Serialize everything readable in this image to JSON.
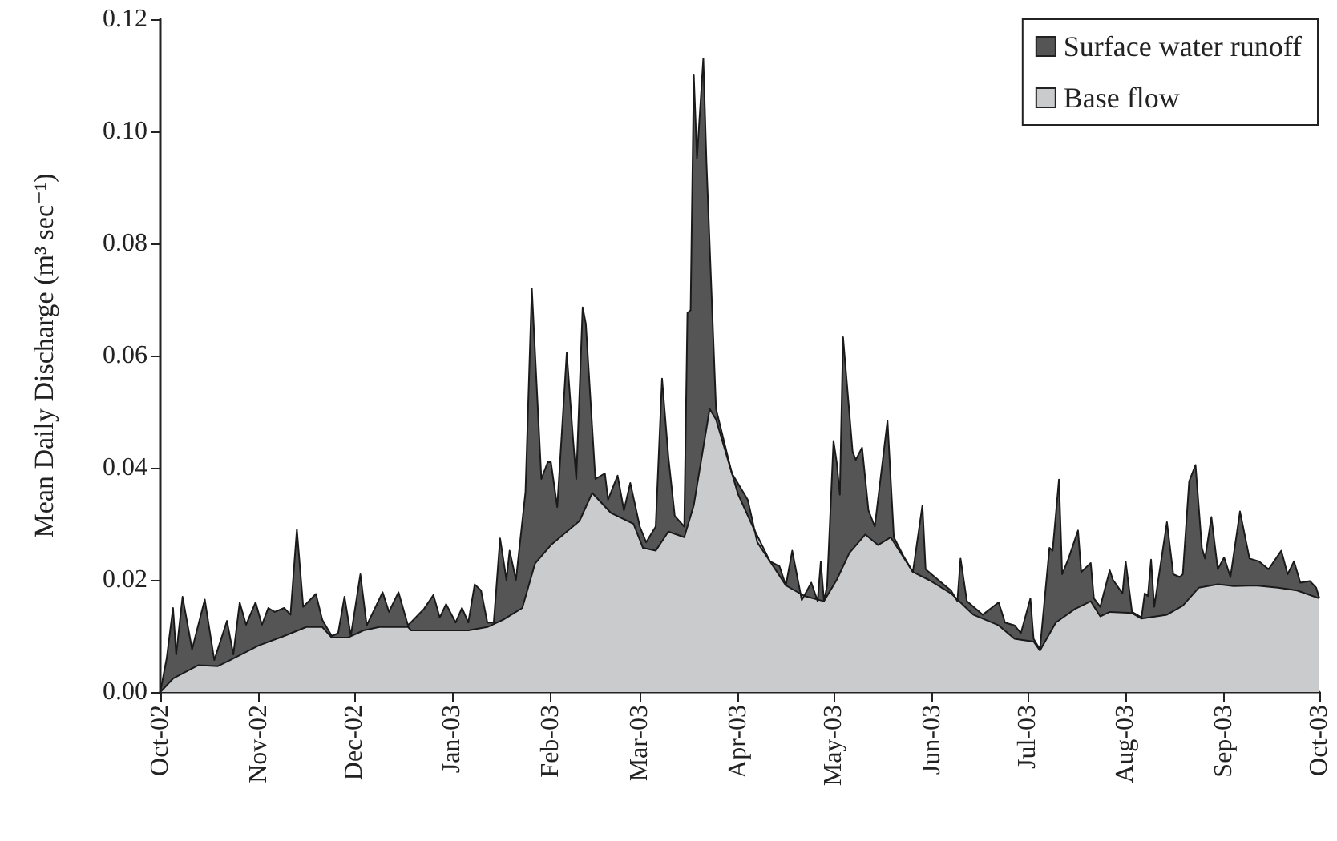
{
  "chart_data": {
    "type": "area",
    "ylabel": "Mean Daily Discharge (m³ sec⁻¹)",
    "legend": "top right",
    "grid": false,
    "xlim": [
      "2002-10-01",
      "2003-10-01"
    ],
    "xticks": [
      {
        "value": "2002-10-01",
        "label": "Oct-02"
      },
      {
        "value": "2002-11-01",
        "label": "Nov-02"
      },
      {
        "value": "2002-12-01",
        "label": "Dec-02"
      },
      {
        "value": "2003-01-01",
        "label": "Jan-03"
      },
      {
        "value": "2003-02-01",
        "label": "Feb-03"
      },
      {
        "value": "2003-03-01",
        "label": "Mar-03"
      },
      {
        "value": "2003-04-01",
        "label": "Apr-03"
      },
      {
        "value": "2003-05-01",
        "label": "May-03"
      },
      {
        "value": "2003-06-01",
        "label": "Jun-03"
      },
      {
        "value": "2003-07-01",
        "label": "Jul-03"
      },
      {
        "value": "2003-08-01",
        "label": "Aug-03"
      },
      {
        "value": "2003-09-01",
        "label": "Sep-03"
      },
      {
        "value": "2003-10-01",
        "label": "Oct-03"
      }
    ],
    "ylim": [
      0,
      0.12
    ],
    "yticks": [
      {
        "value": 0,
        "label": "0.00"
      },
      {
        "value": 0.02,
        "label": "0.02"
      },
      {
        "value": 0.04,
        "label": "0.04"
      },
      {
        "value": 0.06,
        "label": "0.06"
      },
      {
        "value": 0.08,
        "label": "0.08"
      },
      {
        "value": 0.1,
        "label": "0.10"
      },
      {
        "value": 0.12,
        "label": "0.12"
      }
    ],
    "series": [
      {
        "name": "Surface water runoff",
        "color": "#555555",
        "x": [
          "2002-10-01",
          "2002-10-03",
          "2002-10-05",
          "2002-10-06",
          "2002-10-08",
          "2002-10-11",
          "2002-10-15",
          "2002-10-18",
          "2002-10-22",
          "2002-10-24",
          "2002-10-26",
          "2002-10-28",
          "2002-10-31",
          "2002-11-02",
          "2002-11-04",
          "2002-11-06",
          "2002-11-09",
          "2002-11-11",
          "2002-11-13",
          "2002-11-15",
          "2002-11-19",
          "2002-11-21",
          "2002-11-24",
          "2002-11-26",
          "2002-11-28",
          "2002-11-30",
          "2002-12-03",
          "2002-12-05",
          "2002-12-10",
          "2002-12-12",
          "2002-12-15",
          "2002-12-18",
          "2002-12-23",
          "2002-12-26",
          "2002-12-28",
          "2002-12-30",
          "2003-01-02",
          "2003-01-04",
          "2003-01-06",
          "2003-01-08",
          "2003-01-10",
          "2003-01-12",
          "2003-01-14",
          "2003-01-16",
          "2003-01-18",
          "2003-01-19",
          "2003-01-21",
          "2003-01-24",
          "2003-01-26",
          "2003-01-29",
          "2003-01-31",
          "2003-02-01",
          "2003-02-03",
          "2003-02-06",
          "2003-02-08",
          "2003-02-09",
          "2003-02-11",
          "2003-02-12",
          "2003-02-15",
          "2003-02-18",
          "2003-02-19",
          "2003-02-22",
          "2003-02-24",
          "2003-02-26",
          "2003-03-01",
          "2003-03-03",
          "2003-03-06",
          "2003-03-08",
          "2003-03-10",
          "2003-03-12",
          "2003-03-15",
          "2003-03-16",
          "2003-03-17",
          "2003-03-18",
          "2003-03-19",
          "2003-03-21",
          "2003-03-22",
          "2003-03-25",
          "2003-03-30",
          "2003-04-04",
          "2003-04-07",
          "2003-04-11",
          "2003-04-14",
          "2003-04-16",
          "2003-04-18",
          "2003-04-21",
          "2003-04-24",
          "2003-04-26",
          "2003-04-27",
          "2003-04-28",
          "2003-04-29",
          "2003-05-01",
          "2003-05-02",
          "2003-05-03",
          "2003-05-04",
          "2003-05-07",
          "2003-05-08",
          "2003-05-10",
          "2003-05-12",
          "2003-05-14",
          "2003-05-18",
          "2003-05-20",
          "2003-05-23",
          "2003-05-26",
          "2003-05-29",
          "2003-05-30",
          "2003-06-04",
          "2003-06-07",
          "2003-06-09",
          "2003-06-10",
          "2003-06-12",
          "2003-06-17",
          "2003-06-22",
          "2003-06-24",
          "2003-06-27",
          "2003-06-29",
          "2003-07-02",
          "2003-07-03",
          "2003-07-05",
          "2003-07-08",
          "2003-07-09",
          "2003-07-11",
          "2003-07-12",
          "2003-07-14",
          "2003-07-17",
          "2003-07-18",
          "2003-07-21",
          "2003-07-22",
          "2003-07-24",
          "2003-07-27",
          "2003-07-28",
          "2003-07-31",
          "2003-08-01",
          "2003-08-03",
          "2003-08-06",
          "2003-08-07",
          "2003-08-08",
          "2003-08-09",
          "2003-08-10",
          "2003-08-14",
          "2003-08-16",
          "2003-08-18",
          "2003-08-19",
          "2003-08-21",
          "2003-08-23",
          "2003-08-25",
          "2003-08-26",
          "2003-08-28",
          "2003-08-30",
          "2003-09-01",
          "2003-09-03",
          "2003-09-06",
          "2003-09-09",
          "2003-09-12",
          "2003-09-15",
          "2003-09-19",
          "2003-09-21",
          "2003-09-23",
          "2003-09-25",
          "2003-09-28",
          "2003-09-30",
          "2003-10-01"
        ],
        "values": [
          0,
          0.006,
          0.015,
          0.0067,
          0.017,
          0.0076,
          0.0165,
          0.0057,
          0.0127,
          0.0067,
          0.016,
          0.012,
          0.016,
          0.012,
          0.015,
          0.0143,
          0.015,
          0.0138,
          0.029,
          0.0152,
          0.0175,
          0.0129,
          0.01,
          0.0105,
          0.017,
          0.01,
          0.021,
          0.0119,
          0.0178,
          0.0143,
          0.0178,
          0.0119,
          0.0148,
          0.0173,
          0.0133,
          0.0157,
          0.0124,
          0.015,
          0.0124,
          0.0192,
          0.0181,
          0.0124,
          0.0124,
          0.0274,
          0.02,
          0.0252,
          0.02,
          0.0357,
          0.072,
          0.038,
          0.041,
          0.041,
          0.033,
          0.0605,
          0.045,
          0.038,
          0.0686,
          0.0657,
          0.038,
          0.039,
          0.0343,
          0.0386,
          0.0324,
          0.0373,
          0.0295,
          0.0267,
          0.0295,
          0.0559,
          0.0419,
          0.0314,
          0.0295,
          0.0676,
          0.0681,
          0.11,
          0.0952,
          0.113,
          0.0943,
          0.0505,
          0.039,
          0.0343,
          0.0267,
          0.0233,
          0.0224,
          0.019,
          0.0252,
          0.0164,
          0.0195,
          0.0162,
          0.0233,
          0.0162,
          0.019,
          0.0448,
          0.041,
          0.0352,
          0.0633,
          0.0429,
          0.0414,
          0.0436,
          0.0324,
          0.0295,
          0.0484,
          0.0276,
          0.0243,
          0.0214,
          0.0333,
          0.0219,
          0.0195,
          0.0181,
          0.0162,
          0.0238,
          0.0162,
          0.0138,
          0.016,
          0.0124,
          0.0119,
          0.0105,
          0.0167,
          0.0095,
          0.0076,
          0.0257,
          0.0252,
          0.0379,
          0.021,
          0.0238,
          0.0288,
          0.0214,
          0.023,
          0.0167,
          0.0152,
          0.0217,
          0.02,
          0.0176,
          0.0233,
          0.0143,
          0.0133,
          0.0176,
          0.0171,
          0.0236,
          0.0152,
          0.0303,
          0.021,
          0.0205,
          0.021,
          0.0376,
          0.0405,
          0.0257,
          0.0238,
          0.0312,
          0.0219,
          0.024,
          0.0205,
          0.0322,
          0.0238,
          0.0233,
          0.0219,
          0.0252,
          0.021,
          0.0233,
          0.0195,
          0.0198,
          0.0186,
          0.0167
        ]
      },
      {
        "name": "Base flow",
        "color": "#cacbcd",
        "x": [
          "2002-10-01",
          "2002-10-05",
          "2002-10-13",
          "2002-10-19",
          "2002-10-23",
          "2002-11-01",
          "2002-11-09",
          "2002-11-16",
          "2002-11-21",
          "2002-11-24",
          "2002-11-29",
          "2002-12-04",
          "2002-12-09",
          "2002-12-18",
          "2002-12-19",
          "2002-12-28",
          "2003-01-06",
          "2003-01-12",
          "2003-01-17",
          "2003-01-23",
          "2003-01-27",
          "2003-02-01",
          "2003-02-06",
          "2003-02-10",
          "2003-02-14",
          "2003-02-20",
          "2003-02-27",
          "2003-03-02",
          "2003-03-06",
          "2003-03-10",
          "2003-03-15",
          "2003-03-18",
          "2003-03-23",
          "2003-03-25",
          "2003-04-01",
          "2003-04-06",
          "2003-04-11",
          "2003-04-16",
          "2003-04-22",
          "2003-04-28",
          "2003-05-02",
          "2003-05-06",
          "2003-05-11",
          "2003-05-15",
          "2003-05-19",
          "2003-05-26",
          "2003-05-31",
          "2003-06-07",
          "2003-06-14",
          "2003-06-22",
          "2003-06-27",
          "2003-07-03",
          "2003-07-05",
          "2003-07-10",
          "2003-07-16",
          "2003-07-21",
          "2003-07-24",
          "2003-07-27",
          "2003-08-03",
          "2003-08-06",
          "2003-08-14",
          "2003-08-19",
          "2003-08-24",
          "2003-08-30",
          "2003-09-04",
          "2003-09-11",
          "2003-09-18",
          "2003-09-24",
          "2003-10-01"
        ],
        "values": [
          0,
          0.0024,
          0.0048,
          0.0046,
          0.0057,
          0.0083,
          0.01,
          0.0116,
          0.0116,
          0.0097,
          0.0097,
          0.011,
          0.0116,
          0.0116,
          0.011,
          0.011,
          0.011,
          0.0116,
          0.0129,
          0.015,
          0.0229,
          0.0262,
          0.0286,
          0.0305,
          0.0355,
          0.0319,
          0.03,
          0.0257,
          0.0252,
          0.0286,
          0.0276,
          0.0333,
          0.0505,
          0.0486,
          0.0352,
          0.029,
          0.0233,
          0.019,
          0.0171,
          0.0162,
          0.02,
          0.0248,
          0.0281,
          0.0262,
          0.0276,
          0.0214,
          0.02,
          0.0176,
          0.0138,
          0.0119,
          0.0095,
          0.009,
          0.0074,
          0.0124,
          0.0148,
          0.0162,
          0.0135,
          0.0143,
          0.0141,
          0.0131,
          0.0138,
          0.0154,
          0.0186,
          0.0192,
          0.0189,
          0.019,
          0.0186,
          0.0181,
          0.0167
        ]
      }
    ]
  }
}
